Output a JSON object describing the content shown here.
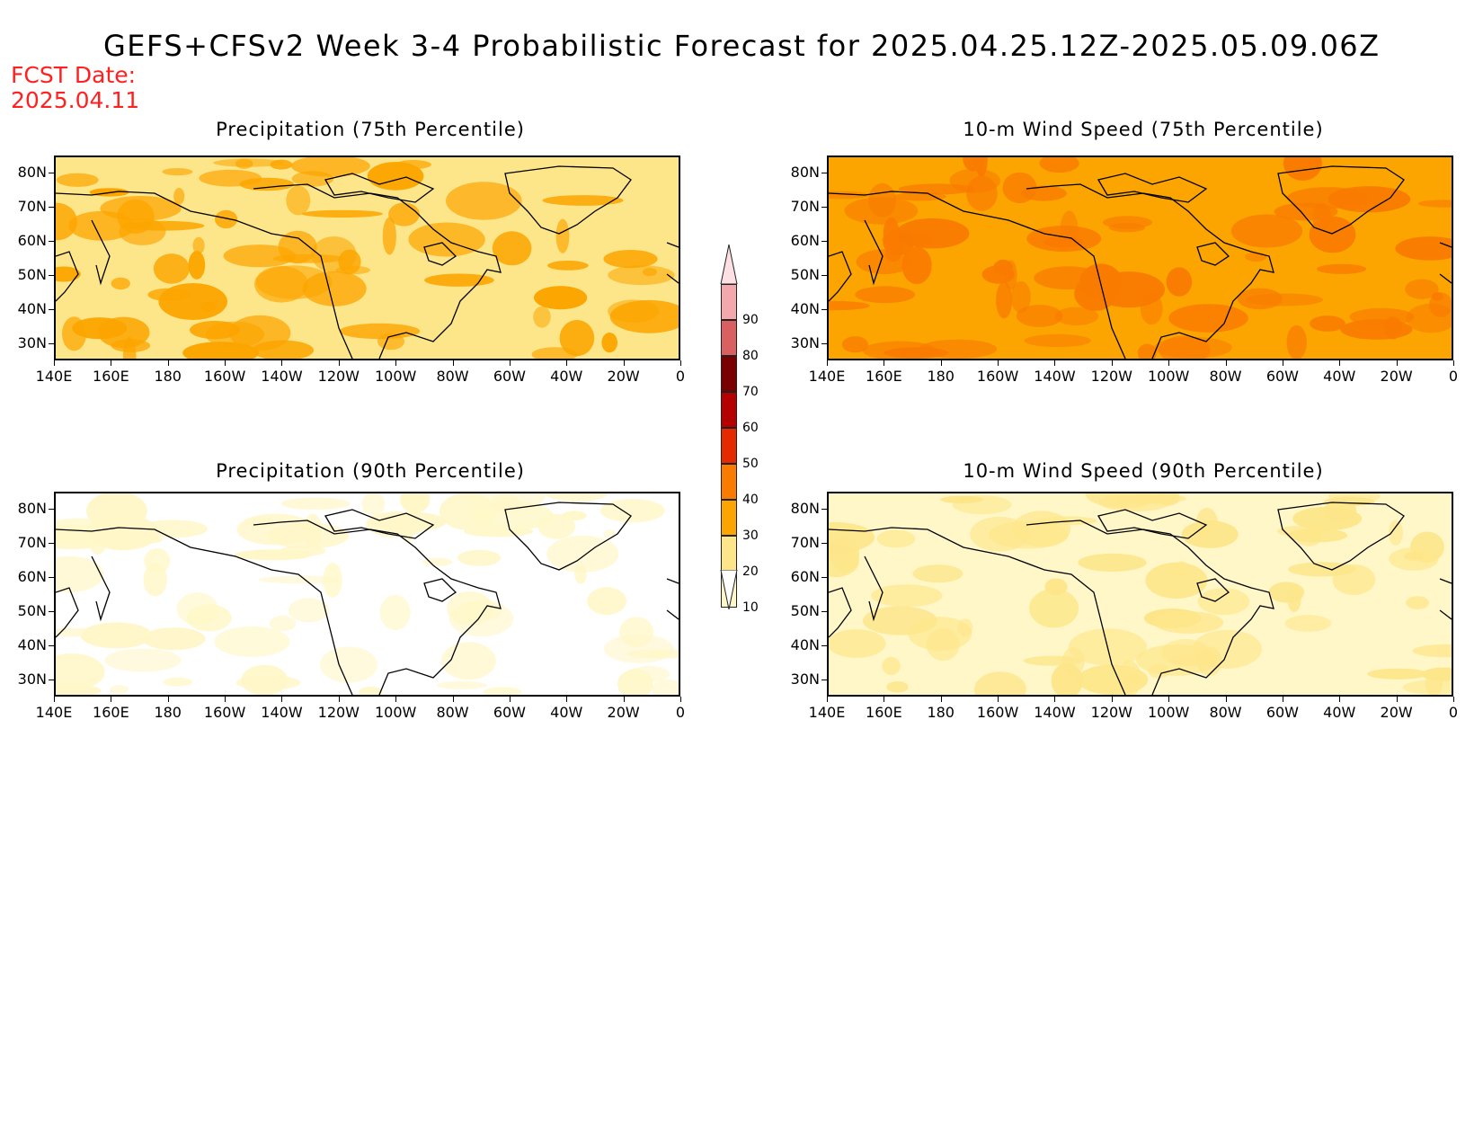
{
  "title": "GEFS+CFSv2 Week 3-4 Probabilistic Forecast for 2025.04.25.12Z-2025.05.09.06Z",
  "fcst_date_label": "FCST Date:",
  "fcst_date_value": "2025.04.11",
  "colors": {
    "c10": "#fff7c8",
    "c20": "#fde68a",
    "c30": "#fca500",
    "c40": "#f97b00",
    "c50": "#e32a00",
    "c60": "#b40000",
    "c70": "#7a0000",
    "c80": "#d96060",
    "c90": "#f3a8ae",
    "c100": "#fde0e3"
  },
  "colorbar": {
    "labels": [
      "90",
      "80",
      "70",
      "60",
      "50",
      "40",
      "30",
      "20",
      "10"
    ]
  },
  "lat_labels": [
    "80N",
    "70N",
    "60N",
    "50N",
    "40N",
    "30N"
  ],
  "lon_labels": [
    "140E",
    "160E",
    "180",
    "160W",
    "140W",
    "120W",
    "100W",
    "80W",
    "60W",
    "40W",
    "20W",
    "0"
  ],
  "panels": [
    {
      "title": "Precipitation (75th Percentile)",
      "base": "c20",
      "spots": "c30"
    },
    {
      "title": "10-m Wind Speed (75th Percentile)",
      "base": "c30",
      "spots": "c40"
    },
    {
      "title": "Precipitation (90th Percentile)",
      "base": "white",
      "spots": "c10"
    },
    {
      "title": "10-m Wind Speed (90th Percentile)",
      "base": "c10",
      "spots": "c20"
    }
  ]
}
